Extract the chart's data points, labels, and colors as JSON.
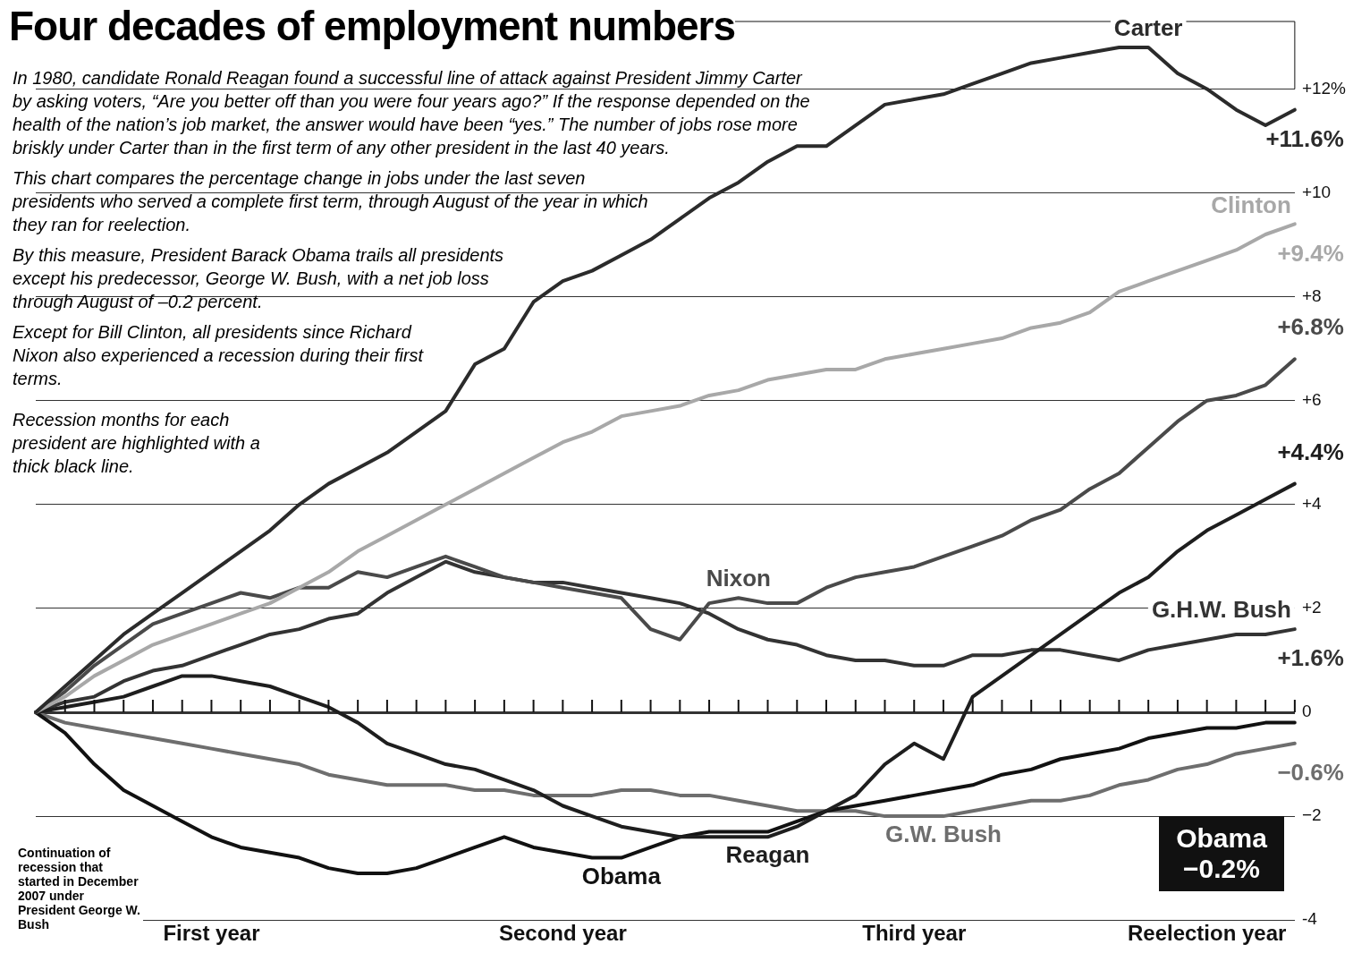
{
  "chart_data": {
    "type": "line",
    "title": "Four decades of employment numbers",
    "annotations": [
      "In 1980, candidate Ronald Reagan found a successful line of attack against President Jimmy Carter by asking voters, “Are you better off than you were four years ago?” If the response depended on the health of the nation’s job market, the answer would have been “yes.” The number of jobs rose more briskly under Carter than in the first term of any other president in the last 40 years.",
      "This chart compares the percentage change in jobs under the last seven presidents who served a complete first term, through August of the year in which they ran for reelection.",
      "By this measure, President Barack Obama trails all presidents except his predecessor, George W. Bush, with a net job loss through August of –0.2 percent.",
      "Except for Bill Clinton, all presidents since Richard Nixon also experienced a recession during their first terms.",
      "Recession months for each president are highlighted with a thick black line.",
      "Continuation of recession that started in December 2007 under President George W. Bush",
      "Obama −0.2%"
    ],
    "categories": [
      null,
      null,
      null,
      null,
      null,
      null,
      "First year",
      null,
      null,
      null,
      null,
      null,
      null,
      null,
      null,
      null,
      null,
      null,
      "Second year",
      null,
      null,
      null,
      null,
      null,
      null,
      null,
      null,
      null,
      null,
      null,
      "Third year",
      null,
      null,
      null,
      null,
      null,
      null,
      null,
      null,
      null,
      "Reelection year",
      null,
      null,
      null
    ],
    "ylim": [
      -4,
      13.3
    ],
    "yticks": [
      -4,
      {
        "value": -2,
        "label": "−2"
      },
      0,
      {
        "value": 2,
        "label": "+2"
      },
      {
        "value": 4,
        "label": "+4"
      },
      {
        "value": 6,
        "label": "+6"
      },
      {
        "value": 8,
        "label": "+8"
      },
      {
        "value": 10,
        "label": "+10"
      },
      {
        "value": 12,
        "label": "+12%"
      }
    ],
    "grid": "y",
    "legend": false,
    "marker": "none",
    "line_style": "solid",
    "series": [
      {
        "name": "Carter",
        "color": "#2b2b2b",
        "values": [
          0,
          0.5,
          1.0,
          1.5,
          1.9,
          2.3,
          2.7,
          3.1,
          3.5,
          4.0,
          4.4,
          4.7,
          5.0,
          5.4,
          5.8,
          6.7,
          7.0,
          7.9,
          8.3,
          8.5,
          8.8,
          9.1,
          9.5,
          9.9,
          10.2,
          10.6,
          10.9,
          10.9,
          11.3,
          11.7,
          11.8,
          11.9,
          12.1,
          12.3,
          12.5,
          12.6,
          12.7,
          12.8,
          12.8,
          12.3,
          12.0,
          11.6,
          11.3,
          11.6
        ],
        "value_labels": [
          null,
          null,
          null,
          null,
          null,
          null,
          null,
          null,
          null,
          null,
          null,
          null,
          null,
          null,
          null,
          null,
          null,
          null,
          null,
          null,
          null,
          null,
          null,
          null,
          null,
          null,
          null,
          null,
          null,
          null,
          null,
          null,
          null,
          null,
          null,
          null,
          null,
          null,
          null,
          null,
          null,
          null,
          null,
          "+11.6%"
        ]
      },
      {
        "name": "Clinton",
        "color": "#a8a8a8",
        "values": [
          0,
          0.3,
          0.7,
          1.0,
          1.3,
          1.5,
          1.7,
          1.9,
          2.1,
          2.4,
          2.7,
          3.1,
          3.4,
          3.7,
          4.0,
          4.3,
          4.6,
          4.9,
          5.2,
          5.4,
          5.7,
          5.8,
          5.9,
          6.1,
          6.2,
          6.4,
          6.5,
          6.6,
          6.6,
          6.8,
          6.9,
          7.0,
          7.1,
          7.2,
          7.4,
          7.5,
          7.7,
          8.1,
          8.3,
          8.5,
          8.7,
          8.9,
          9.2,
          9.4
        ],
        "value_labels": [
          null,
          null,
          null,
          null,
          null,
          null,
          null,
          null,
          null,
          null,
          null,
          null,
          null,
          null,
          null,
          null,
          null,
          null,
          null,
          null,
          null,
          null,
          null,
          null,
          null,
          null,
          null,
          null,
          null,
          null,
          null,
          null,
          null,
          null,
          null,
          null,
          null,
          null,
          null,
          null,
          null,
          null,
          null,
          "+9.4%"
        ]
      },
      {
        "name": "Nixon",
        "color": "#4a4a4a",
        "values": [
          0,
          0.4,
          0.9,
          1.3,
          1.7,
          1.9,
          2.1,
          2.3,
          2.2,
          2.4,
          2.4,
          2.7,
          2.6,
          2.8,
          3.0,
          2.8,
          2.6,
          2.5,
          2.4,
          2.3,
          2.2,
          1.6,
          1.4,
          2.1,
          2.2,
          2.1,
          2.1,
          2.4,
          2.6,
          2.7,
          2.8,
          3.0,
          3.2,
          3.4,
          3.7,
          3.9,
          4.3,
          4.6,
          5.1,
          5.6,
          6.0,
          6.1,
          6.3,
          6.8
        ],
        "value_labels": [
          null,
          null,
          null,
          null,
          null,
          null,
          null,
          null,
          null,
          null,
          null,
          null,
          null,
          null,
          null,
          null,
          null,
          null,
          null,
          null,
          null,
          null,
          null,
          null,
          null,
          null,
          null,
          null,
          null,
          null,
          null,
          null,
          null,
          null,
          null,
          null,
          null,
          null,
          null,
          null,
          null,
          null,
          null,
          "+6.8%"
        ]
      },
      {
        "name": "Reagan",
        "color": "#1e1e1e",
        "values": [
          0,
          0.1,
          0.2,
          0.3,
          0.5,
          0.7,
          0.7,
          0.6,
          0.5,
          0.3,
          0.1,
          -0.2,
          -0.6,
          -0.8,
          -1.0,
          -1.1,
          -1.3,
          -1.5,
          -1.8,
          -2.0,
          -2.2,
          -2.3,
          -2.4,
          -2.4,
          -2.4,
          -2.4,
          -2.2,
          -1.9,
          -1.6,
          -1.0,
          -0.6,
          -0.9,
          0.3,
          0.7,
          1.1,
          1.5,
          1.9,
          2.3,
          2.6,
          3.1,
          3.5,
          3.8,
          4.1,
          4.4
        ],
        "value_labels": [
          null,
          null,
          null,
          null,
          null,
          null,
          null,
          null,
          null,
          null,
          null,
          null,
          null,
          null,
          null,
          null,
          null,
          null,
          null,
          null,
          null,
          null,
          null,
          null,
          null,
          null,
          null,
          null,
          null,
          null,
          null,
          null,
          null,
          null,
          null,
          null,
          null,
          null,
          null,
          null,
          null,
          null,
          null,
          "+4.4%"
        ]
      },
      {
        "name": "G.H.W. Bush",
        "color": "#333333",
        "values": [
          0,
          0.2,
          0.3,
          0.6,
          0.8,
          0.9,
          1.1,
          1.3,
          1.5,
          1.6,
          1.8,
          1.9,
          2.3,
          2.6,
          2.9,
          2.7,
          2.6,
          2.5,
          2.5,
          2.4,
          2.3,
          2.2,
          2.1,
          1.9,
          1.6,
          1.4,
          1.3,
          1.1,
          1.0,
          1.0,
          0.9,
          0.9,
          1.1,
          1.1,
          1.2,
          1.2,
          1.1,
          1.0,
          1.2,
          1.3,
          1.4,
          1.5,
          1.5,
          1.6
        ],
        "value_labels": [
          null,
          null,
          null,
          null,
          null,
          null,
          null,
          null,
          null,
          null,
          null,
          null,
          null,
          null,
          null,
          null,
          null,
          null,
          null,
          null,
          null,
          null,
          null,
          null,
          null,
          null,
          null,
          null,
          null,
          null,
          null,
          null,
          null,
          null,
          null,
          null,
          null,
          null,
          null,
          null,
          null,
          null,
          null,
          "+1.6%"
        ]
      },
      {
        "name": "Obama",
        "color": "#111111",
        "values": [
          0,
          -0.4,
          -1.0,
          -1.5,
          -1.8,
          -2.1,
          -2.4,
          -2.6,
          -2.7,
          -2.8,
          -3.0,
          -3.1,
          -3.1,
          -3.0,
          -2.8,
          -2.6,
          -2.4,
          -2.6,
          -2.7,
          -2.8,
          -2.8,
          -2.6,
          -2.4,
          -2.3,
          -2.3,
          -2.3,
          -2.1,
          -1.9,
          -1.8,
          -1.7,
          -1.6,
          -1.5,
          -1.4,
          -1.2,
          -1.1,
          -0.9,
          -0.8,
          -0.7,
          -0.5,
          -0.4,
          -0.3,
          -0.3,
          -0.2,
          -0.2
        ]
      },
      {
        "name": "G.W. Bush",
        "color": "#6e6e6e",
        "values": [
          0,
          -0.2,
          -0.3,
          -0.4,
          -0.5,
          -0.6,
          -0.7,
          -0.8,
          -0.9,
          -1.0,
          -1.2,
          -1.3,
          -1.4,
          -1.4,
          -1.4,
          -1.5,
          -1.5,
          -1.6,
          -1.6,
          -1.6,
          -1.5,
          -1.5,
          -1.6,
          -1.6,
          -1.7,
          -1.8,
          -1.9,
          -1.9,
          -1.9,
          -2.0,
          -2.0,
          -2.0,
          -1.9,
          -1.8,
          -1.7,
          -1.7,
          -1.6,
          -1.4,
          -1.3,
          -1.1,
          -1.0,
          -0.8,
          -0.7,
          -0.6
        ],
        "value_labels": [
          null,
          null,
          null,
          null,
          null,
          null,
          null,
          null,
          null,
          null,
          null,
          null,
          null,
          null,
          null,
          null,
          null,
          null,
          null,
          null,
          null,
          null,
          null,
          null,
          null,
          null,
          null,
          null,
          null,
          null,
          null,
          null,
          null,
          null,
          null,
          null,
          null,
          null,
          null,
          null,
          null,
          null,
          null,
          "−0.6%"
        ]
      }
    ]
  }
}
